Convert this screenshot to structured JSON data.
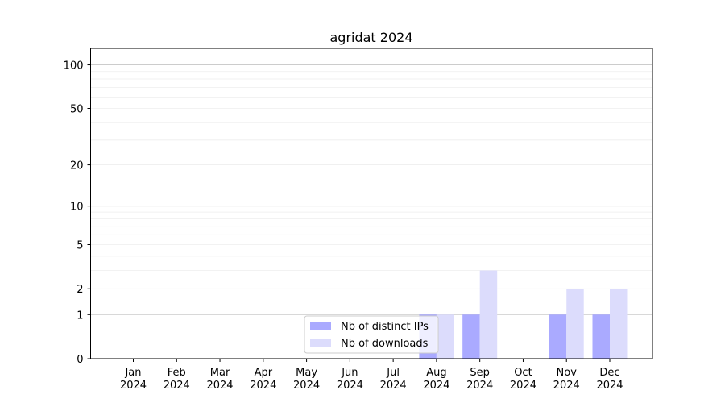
{
  "chart_data": {
    "type": "bar",
    "title": "agridat 2024",
    "xlabel": "",
    "ylabel": "",
    "yscale": "log1p",
    "ylim": [
      0,
      130
    ],
    "y_ticks": [
      0,
      1,
      2,
      5,
      10,
      20,
      50,
      100
    ],
    "grid": "horizontal, major and minor",
    "legend_position": "lower center",
    "categories": [
      [
        "Jan",
        "2024"
      ],
      [
        "Feb",
        "2024"
      ],
      [
        "Mar",
        "2024"
      ],
      [
        "Apr",
        "2024"
      ],
      [
        "May",
        "2024"
      ],
      [
        "Jun",
        "2024"
      ],
      [
        "Jul",
        "2024"
      ],
      [
        "Aug",
        "2024"
      ],
      [
        "Sep",
        "2024"
      ],
      [
        "Oct",
        "2024"
      ],
      [
        "Nov",
        "2024"
      ],
      [
        "Dec",
        "2024"
      ]
    ],
    "series": [
      {
        "name": "Nb of distinct IPs",
        "color": "#aaaaff",
        "values": [
          0,
          0,
          0,
          0,
          0,
          0,
          0,
          1,
          1,
          0,
          1,
          1
        ]
      },
      {
        "name": "Nb of downloads",
        "color": "#dcdcfc",
        "values": [
          0,
          0,
          0,
          0,
          0,
          0,
          0,
          1,
          3,
          0,
          2,
          2
        ]
      }
    ]
  }
}
